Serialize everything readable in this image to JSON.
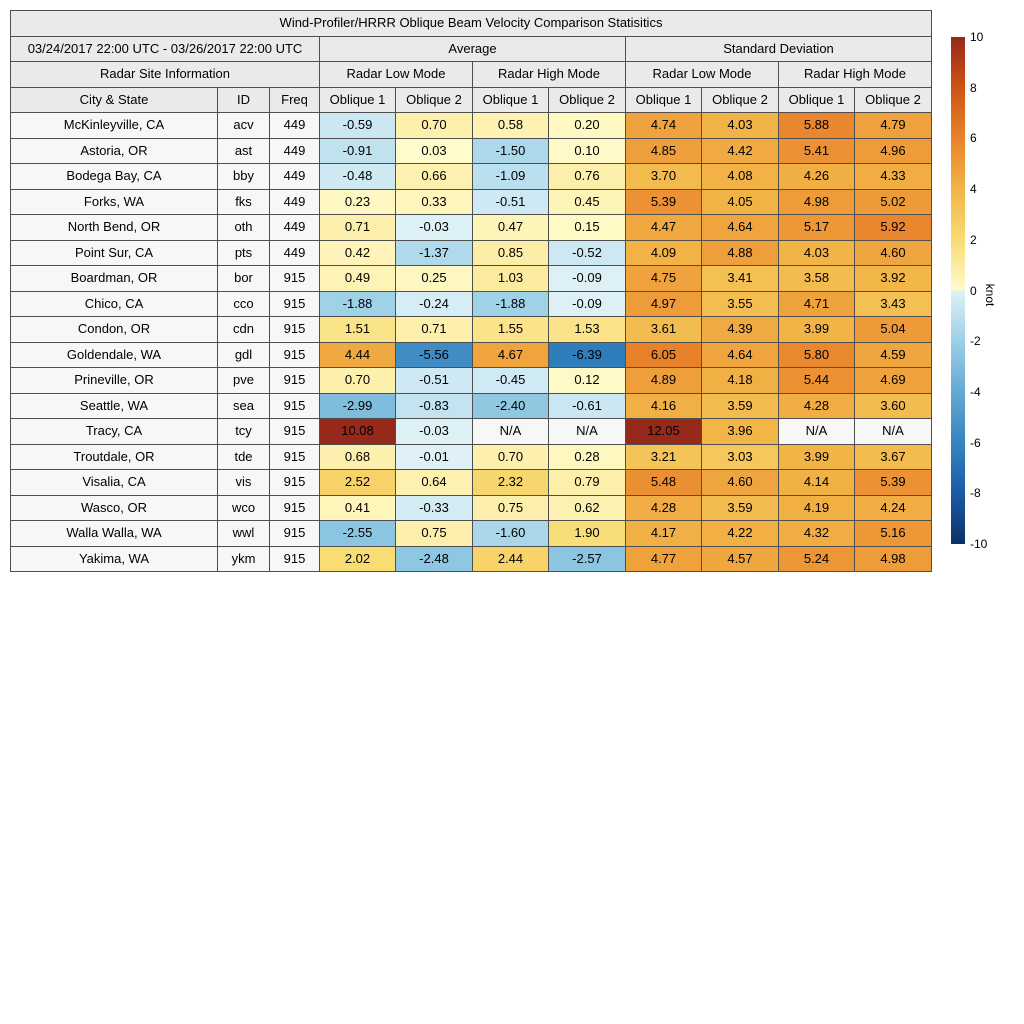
{
  "chart_data": {
    "type": "heatmap",
    "title": "Wind-Profiler/HRRR Oblique Beam Velocity Comparison Statisitics",
    "date_range": "03/24/2017 22:00 UTC - 03/26/2017 22:00 UTC",
    "site_info_header": "Radar Site Information",
    "group_headers": [
      "Average",
      "Standard Deviation"
    ],
    "mode_headers": [
      "Radar Low Mode",
      "Radar High Mode",
      "Radar Low Mode",
      "Radar High Mode"
    ],
    "column_headers": [
      "City & State",
      "ID",
      "Freq"
    ],
    "oblique_headers": [
      "Oblique 1",
      "Oblique 2",
      "Oblique 1",
      "Oblique 2",
      "Oblique 1",
      "Oblique 2",
      "Oblique 1",
      "Oblique 2"
    ],
    "rows": [
      {
        "city": "McKinleyville, CA",
        "id": "acv",
        "freq": "449",
        "values": [
          -0.59,
          0.7,
          0.58,
          0.2,
          4.74,
          4.03,
          5.88,
          4.79
        ]
      },
      {
        "city": "Astoria, OR",
        "id": "ast",
        "freq": "449",
        "values": [
          -0.91,
          0.03,
          -1.5,
          0.1,
          4.85,
          4.42,
          5.41,
          4.96
        ]
      },
      {
        "city": "Bodega Bay, CA",
        "id": "bby",
        "freq": "449",
        "values": [
          -0.48,
          0.66,
          -1.09,
          0.76,
          3.7,
          4.08,
          4.26,
          4.33
        ]
      },
      {
        "city": "Forks, WA",
        "id": "fks",
        "freq": "449",
        "values": [
          0.23,
          0.33,
          -0.51,
          0.45,
          5.39,
          4.05,
          4.98,
          5.02
        ]
      },
      {
        "city": "North Bend, OR",
        "id": "oth",
        "freq": "449",
        "values": [
          0.71,
          -0.03,
          0.47,
          0.15,
          4.47,
          4.64,
          5.17,
          5.92
        ]
      },
      {
        "city": "Point Sur, CA",
        "id": "pts",
        "freq": "449",
        "values": [
          0.42,
          -1.37,
          0.85,
          -0.52,
          4.09,
          4.88,
          4.03,
          4.6
        ]
      },
      {
        "city": "Boardman, OR",
        "id": "bor",
        "freq": "915",
        "values": [
          0.49,
          0.25,
          1.03,
          -0.09,
          4.75,
          3.41,
          3.58,
          3.92
        ]
      },
      {
        "city": "Chico, CA",
        "id": "cco",
        "freq": "915",
        "values": [
          -1.88,
          -0.24,
          -1.88,
          -0.09,
          4.97,
          3.55,
          4.71,
          3.43
        ]
      },
      {
        "city": "Condon, OR",
        "id": "cdn",
        "freq": "915",
        "values": [
          1.51,
          0.71,
          1.55,
          1.53,
          3.61,
          4.39,
          3.99,
          5.04
        ]
      },
      {
        "city": "Goldendale, WA",
        "id": "gdl",
        "freq": "915",
        "values": [
          4.44,
          -5.56,
          4.67,
          -6.39,
          6.05,
          4.64,
          5.8,
          4.59
        ]
      },
      {
        "city": "Prineville, OR",
        "id": "pve",
        "freq": "915",
        "values": [
          0.7,
          -0.51,
          -0.45,
          0.12,
          4.89,
          4.18,
          5.44,
          4.69
        ]
      },
      {
        "city": "Seattle, WA",
        "id": "sea",
        "freq": "915",
        "values": [
          -2.99,
          -0.83,
          -2.4,
          -0.61,
          4.16,
          3.59,
          4.28,
          3.6
        ]
      },
      {
        "city": "Tracy, CA",
        "id": "tcy",
        "freq": "915",
        "values": [
          10.08,
          -0.03,
          "N/A",
          "N/A",
          12.05,
          3.96,
          "N/A",
          "N/A"
        ]
      },
      {
        "city": "Troutdale, OR",
        "id": "tde",
        "freq": "915",
        "values": [
          0.68,
          -0.01,
          0.7,
          0.28,
          3.21,
          3.03,
          3.99,
          3.67
        ]
      },
      {
        "city": "Visalia, CA",
        "id": "vis",
        "freq": "915",
        "values": [
          2.52,
          0.64,
          2.32,
          0.79,
          5.48,
          4.6,
          4.14,
          5.39
        ]
      },
      {
        "city": "Wasco, OR",
        "id": "wco",
        "freq": "915",
        "values": [
          0.41,
          -0.33,
          0.75,
          0.62,
          4.28,
          3.59,
          4.19,
          4.24
        ]
      },
      {
        "city": "Walla Walla, WA",
        "id": "wwl",
        "freq": "915",
        "values": [
          -2.55,
          0.75,
          -1.6,
          1.9,
          4.17,
          4.22,
          4.32,
          5.16
        ]
      },
      {
        "city": "Yakima, WA",
        "id": "ykm",
        "freq": "915",
        "values": [
          2.02,
          -2.48,
          2.44,
          -2.57,
          4.77,
          4.57,
          5.24,
          4.98
        ]
      }
    ],
    "colorbar": {
      "label": "knot",
      "min": -10,
      "max": 10,
      "ticks": [
        10,
        8,
        6,
        4,
        2,
        0,
        -2,
        -4,
        -6,
        -8,
        -10
      ],
      "positive_stops": [
        {
          "value": 0,
          "color": "#fffbcc"
        },
        {
          "value": 2,
          "color": "#f8dc74"
        },
        {
          "value": 4,
          "color": "#f2b447"
        },
        {
          "value": 6,
          "color": "#e9832b"
        },
        {
          "value": 8,
          "color": "#cd5314"
        },
        {
          "value": 10,
          "color": "#96291a"
        }
      ],
      "negative_stops": [
        {
          "value": 0,
          "color": "#dff1f7"
        },
        {
          "value": -2,
          "color": "#9bd0e6"
        },
        {
          "value": -4,
          "color": "#64a9d2"
        },
        {
          "value": -6,
          "color": "#3585c0"
        },
        {
          "value": -8,
          "color": "#1a5ba6"
        },
        {
          "value": -10,
          "color": "#0a3166"
        }
      ],
      "na_color": "#f7f7f7"
    },
    "styles": {
      "header_bg": "#eaeaea",
      "row_label_bg": "#f7f7f7",
      "border_color": "#4f4f4f"
    }
  }
}
